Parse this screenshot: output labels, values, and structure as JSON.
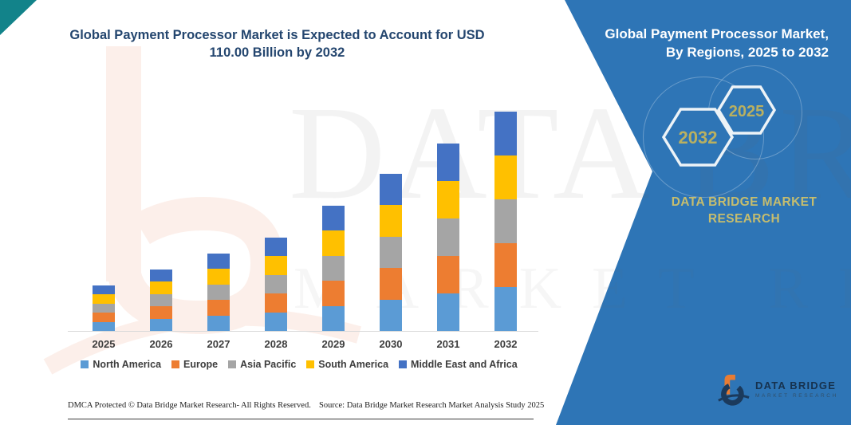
{
  "headline": "Global Payment Processor Market is Expected to Account for USD 110.00 Billion by 2032",
  "side_panel": {
    "title": "Global Payment Processor Market, By Regions, 2025 to 2032",
    "badge_front": "2032",
    "badge_back": "2025",
    "brand_text": "DATA BRIDGE MARKET RESEARCH",
    "panel_color": "#2E75B6",
    "badge_text_color": "#B9B061",
    "brand_text_color": "#C6BD6E"
  },
  "corner_accent_color": "#12838A",
  "watermark": {
    "line1": "DATA BRIDGE",
    "line2": "MARKET RESEARCH"
  },
  "logo": {
    "name": "DATA BRIDGE",
    "tagline": "MARKET RESEARCH"
  },
  "footer": {
    "left": "DMCA Protected © Data Bridge Market Research-  All Rights Reserved.",
    "source": "Source: Data Bridge Market Research  Market Analysis Study 2025"
  },
  "chart_data": {
    "type": "bar",
    "stacked": true,
    "title": "Global Payment Processor Market, By Regions, 2025 to 2032",
    "unit": "USD Billion",
    "categories": [
      "2025",
      "2026",
      "2027",
      "2028",
      "2029",
      "2030",
      "2031",
      "2032"
    ],
    "series": [
      {
        "name": "North America",
        "color": "#5B9BD5",
        "values": [
          4.6,
          6.2,
          7.8,
          9.4,
          12.6,
          15.8,
          18.8,
          22.0
        ]
      },
      {
        "name": "Europe",
        "color": "#ED7D31",
        "values": [
          4.6,
          6.2,
          7.8,
          9.4,
          12.6,
          15.8,
          18.8,
          22.0
        ]
      },
      {
        "name": "Asia Pacific",
        "color": "#A5A5A5",
        "values": [
          4.6,
          6.2,
          7.8,
          9.4,
          12.6,
          15.8,
          18.8,
          22.0
        ]
      },
      {
        "name": "South America",
        "color": "#FFC000",
        "values": [
          4.6,
          6.2,
          7.8,
          9.4,
          12.6,
          15.8,
          18.8,
          22.0
        ]
      },
      {
        "name": "Middle East and Africa",
        "color": "#4472C4",
        "values": [
          4.6,
          6.2,
          7.8,
          9.4,
          12.6,
          15.8,
          18.8,
          22.0
        ]
      }
    ],
    "totals": [
      23,
      31,
      39,
      47,
      63,
      79,
      94,
      110
    ],
    "ylim": [
      0,
      110
    ],
    "y_axis_shown": false,
    "gridlines": false,
    "legend_position": "bottom"
  }
}
